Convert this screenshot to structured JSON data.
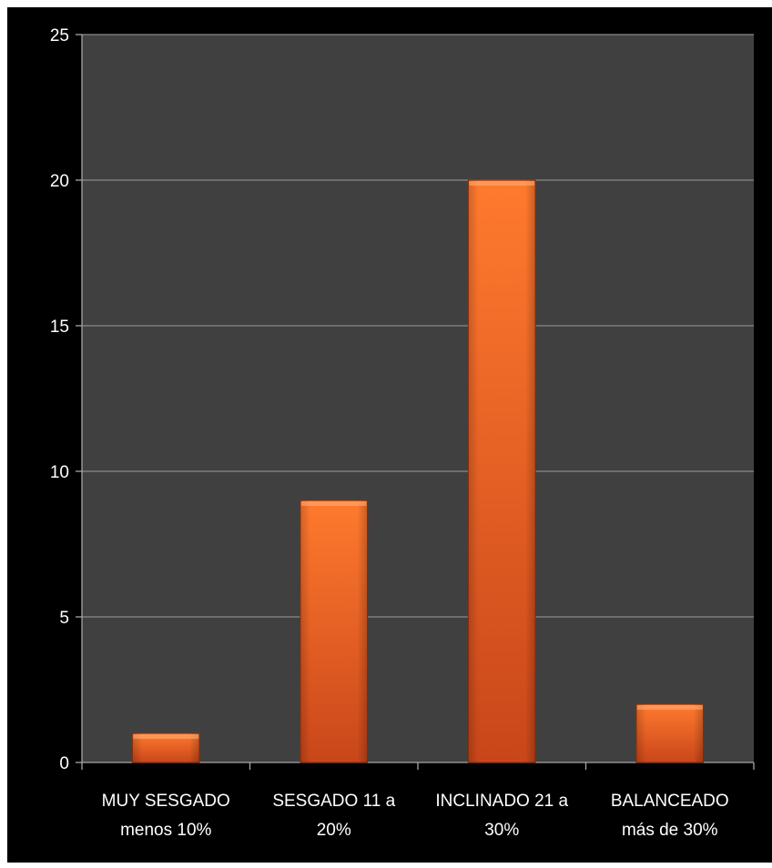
{
  "chart_data": {
    "type": "bar",
    "categories": [
      [
        "MUY SESGADO",
        "menos 10%"
      ],
      [
        "SESGADO 11 a",
        "20%"
      ],
      [
        "INCLINADO 21 a",
        "30%"
      ],
      [
        "BALANCEADO",
        "más de 30%"
      ]
    ],
    "values": [
      1,
      9,
      20,
      2
    ],
    "title": "",
    "xlabel": "",
    "ylabel": "",
    "ylim": [
      0,
      25
    ],
    "yticks": [
      0,
      5,
      10,
      15,
      20,
      25
    ],
    "grid": true,
    "legend": "none",
    "colors": {
      "figure_background": "#000000",
      "plot_background": "#404040",
      "gridline": "#8a8a8a",
      "axis": "#a6a6a6",
      "text": "#ffffff",
      "bar_top": "#ff7a2e",
      "bar_bottom": "#c9461a",
      "bar_edge": "#8a2e0c"
    }
  }
}
